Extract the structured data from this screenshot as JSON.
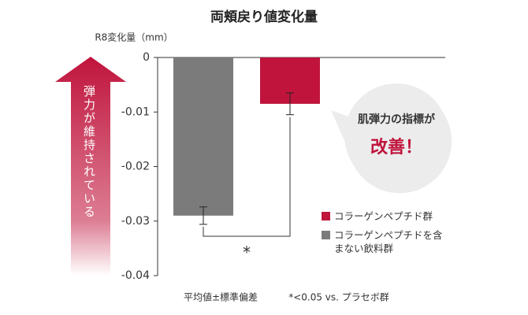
{
  "chart_data": {
    "type": "bar",
    "title": "両頬戻り値変化量",
    "y_label": "R8変化量（mm）",
    "ylim": [
      -0.04,
      0
    ],
    "yticks": [
      0,
      -0.01,
      -0.02,
      -0.03,
      -0.04
    ],
    "series": [
      {
        "name": "コラーゲンペプチドを含まない飲料群",
        "color": "#7b7b7b",
        "values": [
          -0.029
        ],
        "errors": [
          0.0016
        ]
      },
      {
        "name": "コラーゲンペプチド群",
        "color": "#c0143c",
        "values": [
          -0.0085
        ],
        "errors": [
          0.002
        ]
      }
    ],
    "annotations": {
      "arrow": "弾力が維持されている",
      "callout_top": "肌弾力の指標が",
      "callout_main": "改善！",
      "significance": "*",
      "note_left": "平均値±標準偏差",
      "note_right": "*<0.05 vs. プラセボ群"
    }
  }
}
